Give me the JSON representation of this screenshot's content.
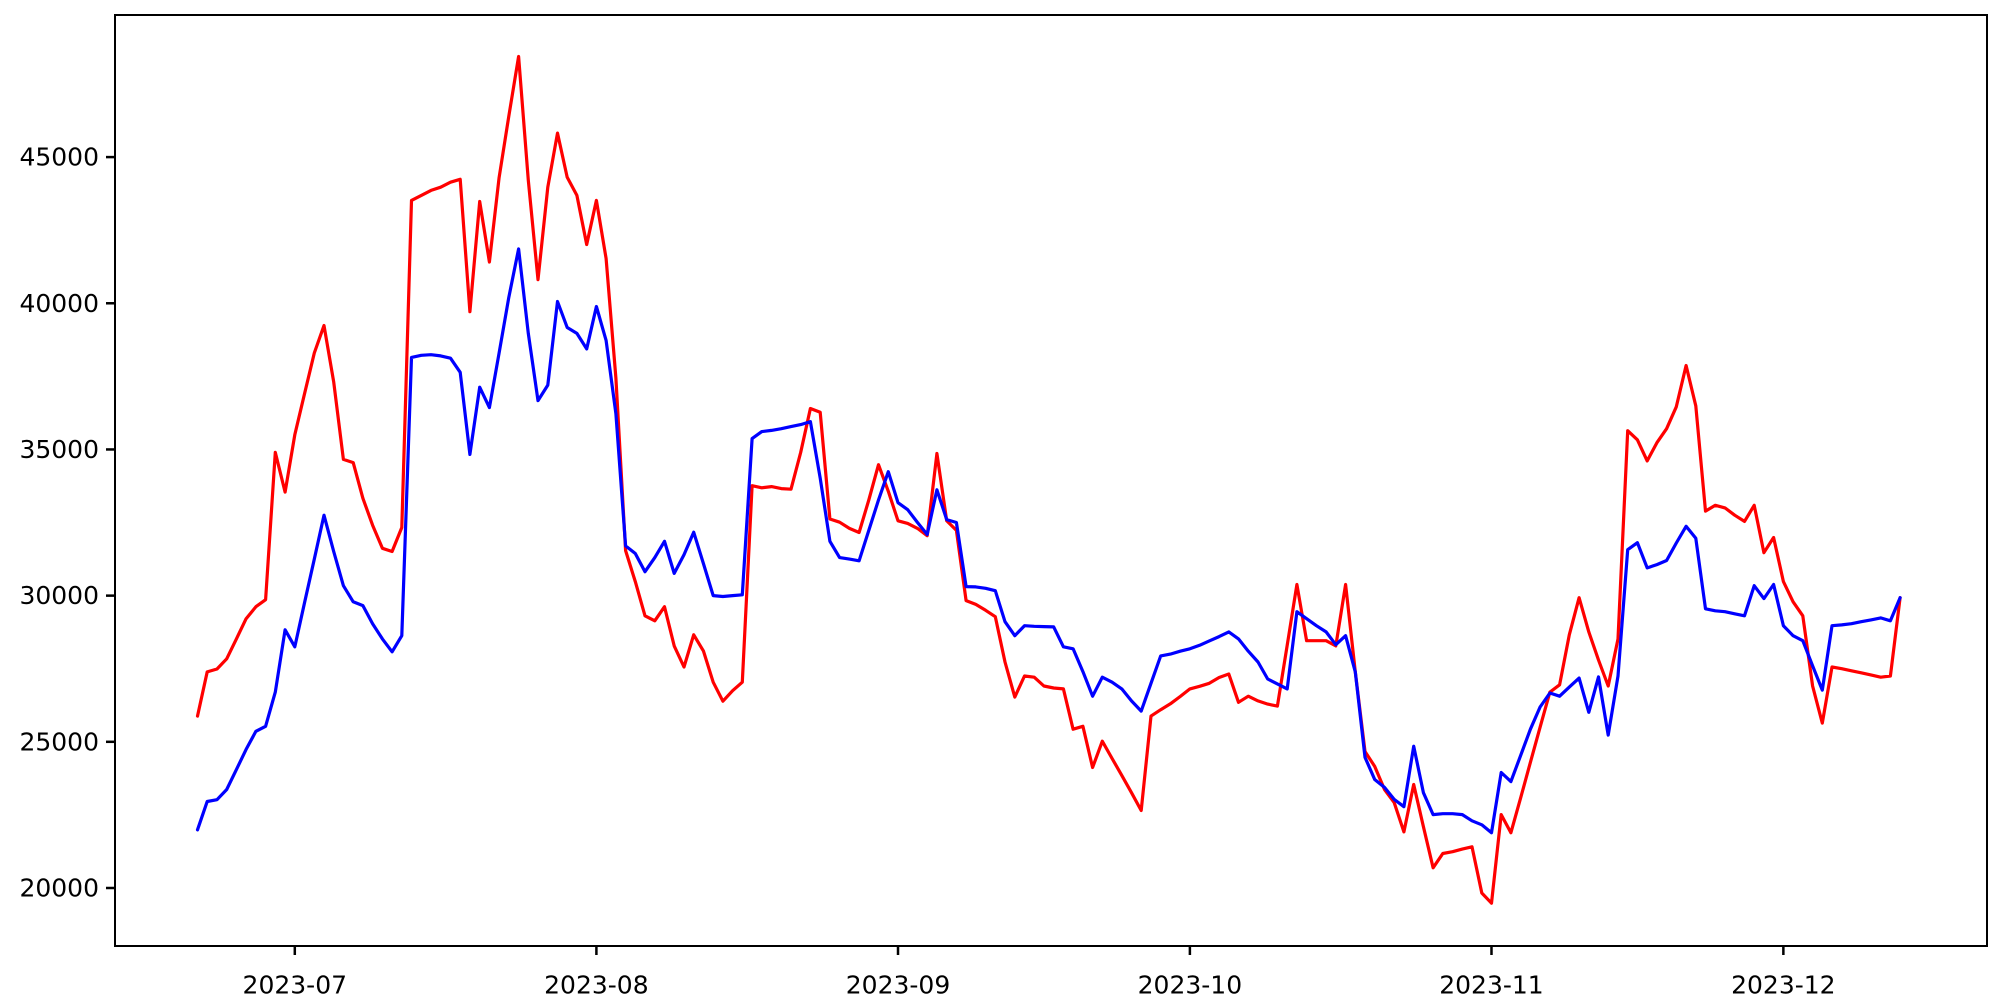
{
  "chart_data": {
    "type": "line",
    "title": "",
    "xlabel": "",
    "ylabel": "",
    "grid": false,
    "legend": false,
    "x_start_date": "2023-06-21",
    "x_step_days": 1,
    "n_points": 176,
    "x_ticks": [
      {
        "label": "2023-07",
        "day_index": 10
      },
      {
        "label": "2023-08",
        "day_index": 41
      },
      {
        "label": "2023-09",
        "day_index": 72
      },
      {
        "label": "2023-10",
        "day_index": 102
      },
      {
        "label": "2023-11",
        "day_index": 133
      },
      {
        "label": "2023-12",
        "day_index": 163
      }
    ],
    "y_ticks": [
      20000,
      25000,
      30000,
      35000,
      40000,
      45000
    ],
    "ylim": [
      18016,
      49860
    ],
    "xlim_day_index": [
      -8.48,
      183.93
    ],
    "axis_color": "#000000",
    "background_color": "#ffffff",
    "series": [
      {
        "name": "red-series",
        "color": "#ff0000",
        "values": [
          25880,
          27390,
          27490,
          27840,
          28520,
          29210,
          29620,
          29860,
          34900,
          33540,
          35500,
          36900,
          38300,
          39240,
          37310,
          34660,
          34550,
          33330,
          32410,
          31620,
          31510,
          32330,
          43520,
          43690,
          43860,
          43970,
          44140,
          44240,
          39710,
          43480,
          41410,
          44300,
          46400,
          48440,
          44210,
          40810,
          43970,
          45820,
          44310,
          43690,
          42010,
          43520,
          41530,
          37440,
          31540,
          30480,
          29310,
          29140,
          29620,
          28280,
          27560,
          28660,
          28110,
          27040,
          26390,
          26750,
          27040,
          33760,
          33690,
          33730,
          33660,
          33640,
          34900,
          36400,
          36270,
          32620,
          32510,
          32300,
          32160,
          33270,
          34480,
          33570,
          32560,
          32470,
          32300,
          32050,
          34860,
          32560,
          32230,
          29830,
          29700,
          29500,
          29280,
          27730,
          26530,
          27250,
          27210,
          26910,
          26840,
          26810,
          25430,
          25530,
          24120,
          25020,
          24430,
          23850,
          23260,
          22650,
          25880,
          26100,
          26300,
          26550,
          26810,
          26900,
          27000,
          27200,
          27320,
          26350,
          26560,
          26400,
          26290,
          26220,
          28300,
          30380,
          28460,
          28460,
          28460,
          28280,
          30380,
          27390,
          24670,
          24160,
          23370,
          22920,
          21920,
          23540,
          22100,
          20690,
          21180,
          21240,
          21330,
          21410,
          19830,
          19480,
          22510,
          21890,
          23090,
          24300,
          25500,
          26700,
          26950,
          28660,
          29930,
          28760,
          27800,
          26910,
          28520,
          35640,
          35330,
          34610,
          35230,
          35710,
          36460,
          37870,
          36490,
          32890,
          33090,
          33000,
          32750,
          32540,
          33090,
          31470,
          31990,
          30480,
          29790,
          29310,
          26910,
          25640,
          27560,
          27500,
          27430,
          27360,
          27290,
          27210,
          27250,
          29930
        ]
      },
      {
        "name": "blue-series",
        "color": "#0000ff",
        "values": [
          21990,
          22960,
          23020,
          23370,
          24050,
          24740,
          25360,
          25530,
          26700,
          28830,
          28250,
          29750,
          31250,
          32750,
          31510,
          30340,
          29790,
          29660,
          29040,
          28520,
          28080,
          28630,
          38150,
          38220,
          38240,
          38200,
          38120,
          37640,
          34830,
          37130,
          36430,
          38300,
          40200,
          41860,
          38970,
          36670,
          37200,
          40060,
          39170,
          38970,
          38440,
          39890,
          38730,
          36220,
          31700,
          31440,
          30820,
          31300,
          31860,
          30760,
          31400,
          32170,
          31100,
          30000,
          29970,
          30000,
          30030,
          35370,
          35610,
          35650,
          35710,
          35780,
          35850,
          35950,
          34020,
          31860,
          31300,
          31250,
          31190,
          32230,
          33270,
          34240,
          33180,
          32940,
          32500,
          32090,
          33620,
          32600,
          32500,
          30310,
          30300,
          30250,
          30170,
          29110,
          28630,
          28970,
          28950,
          28940,
          28930,
          28250,
          28180,
          27400,
          26560,
          27210,
          27040,
          26810,
          26400,
          26050,
          27000,
          27940,
          28000,
          28100,
          28180,
          28300,
          28450,
          28600,
          28760,
          28520,
          28100,
          27730,
          27150,
          26980,
          26810,
          29450,
          29210,
          28970,
          28760,
          28320,
          28630,
          27390,
          24470,
          23710,
          23440,
          23030,
          22780,
          24850,
          23260,
          22510,
          22540,
          22540,
          22510,
          22300,
          22160,
          21890,
          23950,
          23640,
          24540,
          25430,
          26190,
          26670,
          26560,
          26870,
          27180,
          26010,
          27220,
          25230,
          27250,
          31570,
          31810,
          30950,
          31060,
          31200,
          31800,
          32370,
          31960,
          29550,
          29480,
          29450,
          29380,
          29310,
          30340,
          29900,
          30380,
          28970,
          28630,
          28460,
          27600,
          26770,
          28970,
          29000,
          29040,
          29110,
          29170,
          29240,
          29140,
          29930
        ]
      }
    ]
  }
}
